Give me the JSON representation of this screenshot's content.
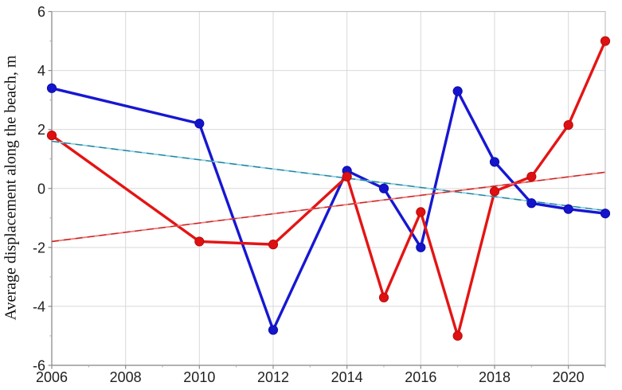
{
  "chart_data": {
    "type": "line",
    "title": "",
    "xlabel": "",
    "ylabel": "Average displacement along the beach, m",
    "xlim": [
      2006,
      2021
    ],
    "ylim": [
      -6,
      6
    ],
    "x_major_ticks": [
      2006,
      2008,
      2010,
      2012,
      2014,
      2016,
      2018,
      2020
    ],
    "x_minor_ticks": [
      2007,
      2009,
      2011,
      2013,
      2015,
      2017,
      2019,
      2021
    ],
    "y_major_ticks": [
      6,
      4,
      2,
      0,
      -2,
      -4,
      -6
    ],
    "y_minor_ticks": [
      5,
      3,
      1,
      -1,
      -3,
      -5
    ],
    "grid": true,
    "grid_color": "#d9d9d9",
    "axis_box_color": "#c2c2c2",
    "axis_line_color": "#8c8c8c",
    "tick_label_color": "#1f1f1f",
    "legend": "none",
    "series": [
      {
        "name": "blue series",
        "color": "#1717d2",
        "marker_color": "#1414cc",
        "marker_edge": "#0d0da8",
        "marker": "circle",
        "x": [
          2006,
          2010,
          2012,
          2014,
          2015,
          2016,
          2017,
          2018,
          2019,
          2020,
          2021
        ],
        "values": [
          3.4,
          2.2,
          -4.8,
          0.6,
          0.0,
          -2.0,
          3.3,
          0.9,
          -0.5,
          -0.7,
          -0.85
        ]
      },
      {
        "name": "red series",
        "color": "#e41414",
        "marker_color": "#e01010",
        "marker_edge": "#b50e0e",
        "marker": "circle",
        "x": [
          2006,
          2010,
          2012,
          2014,
          2015,
          2016,
          2017,
          2018,
          2019,
          2020,
          2021
        ],
        "values": [
          1.8,
          -1.8,
          -1.9,
          0.4,
          -3.7,
          -0.8,
          -5.0,
          -0.1,
          0.4,
          2.15,
          5.0
        ]
      }
    ],
    "trendlines": [
      {
        "name": "blue linear trend",
        "style": "dashed",
        "color_light": "#8ccfdf",
        "color_dark": "#1e7f9c",
        "x": [
          2006,
          2021
        ],
        "values": [
          1.6,
          -0.75
        ]
      },
      {
        "name": "red linear trend",
        "style": "dashed",
        "color_light": "#ee7a7a",
        "color_dark": "#c62222",
        "x": [
          2006,
          2021
        ],
        "values": [
          -1.8,
          0.55
        ]
      }
    ]
  }
}
